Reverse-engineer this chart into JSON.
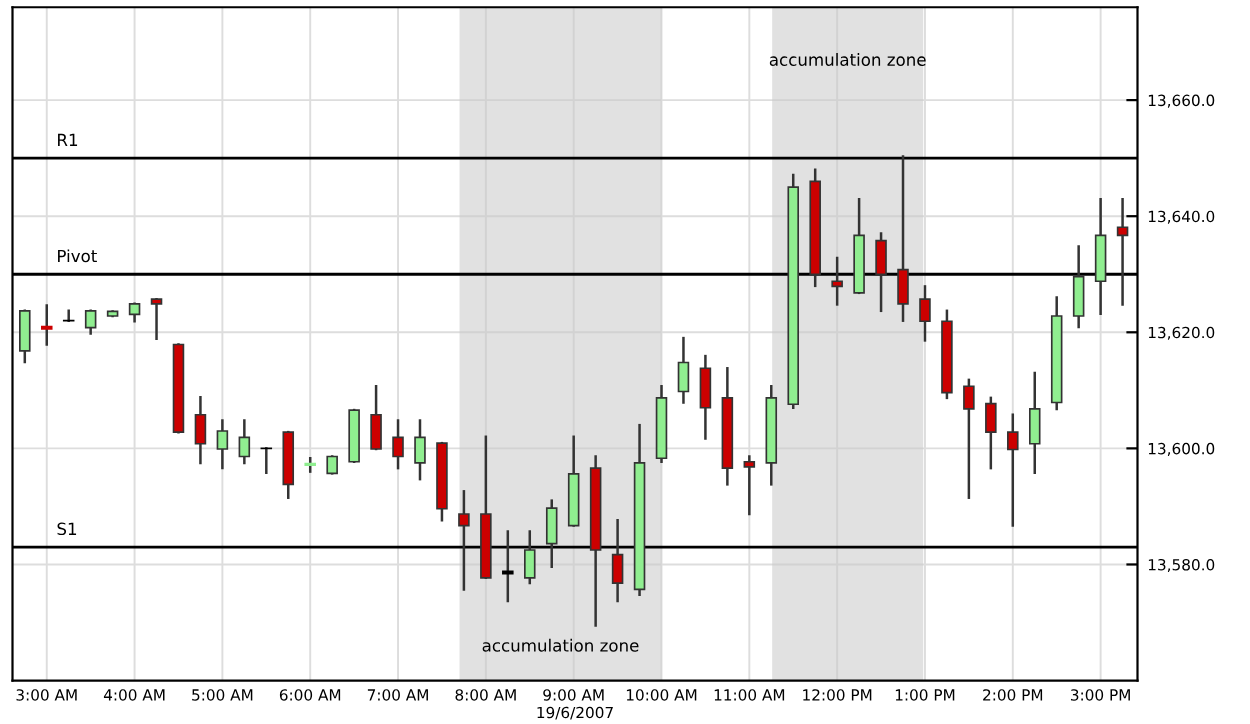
{
  "chart_data": {
    "type": "candlestick",
    "xlabel": "19/6/2007",
    "x": [
      2.75,
      3,
      3.25,
      3.5,
      3.75,
      4,
      4.25,
      4.5,
      4.75,
      5,
      5.25,
      5.5,
      5.75,
      6,
      6.25,
      6.5,
      6.75,
      7,
      7.25,
      7.5,
      7.75,
      8,
      8.25,
      8.5,
      8.75,
      9,
      9.25,
      9.5,
      9.75,
      10,
      10.25,
      10.5,
      10.75,
      11,
      11.25,
      11.5,
      11.75,
      12,
      12.25,
      12.5,
      12.75,
      13,
      13.25,
      13.5,
      13.75,
      14,
      14.25,
      14.5,
      14.75,
      15,
      15.25
    ],
    "ohlc": [
      [
        13616.8,
        13623.7,
        13614.9,
        13623.7
      ],
      [
        13621.0,
        13624.6,
        13617.9,
        13620.6
      ],
      [
        13622,
        13623.7,
        13622,
        13622
      ],
      [
        13620.8,
        13623.7,
        13619.8,
        13623.7
      ],
      [
        13622.8,
        13623.6,
        13622.8,
        13623.6
      ],
      [
        13623.1,
        13624.9,
        13621.9,
        13624.9
      ],
      [
        13625.7,
        13625.7,
        13618.9,
        13624.9
      ],
      [
        13617.9,
        13617.9,
        13602.8,
        13602.8
      ],
      [
        13605.8,
        13608.8,
        13597.5,
        13600.8
      ],
      [
        13599.9,
        13604.8,
        13596.6,
        13603.0
      ],
      [
        13598.6,
        13604.8,
        13597.5,
        13601.9
      ],
      [
        13600,
        13600,
        13595.8,
        13600
      ],
      [
        13602.8,
        13602.8,
        13591.5,
        13593.8
      ],
      [
        13597.1,
        13598.3,
        13596,
        13597.4
      ],
      [
        13595.7,
        13598.6,
        13595.7,
        13598.6
      ],
      [
        13597.7,
        13606.6,
        13597.7,
        13606.6
      ],
      [
        13605.8,
        13610.7,
        13599.9,
        13599.9
      ],
      [
        13601.9,
        13604.8,
        13596.6,
        13598.6
      ],
      [
        13597.5,
        13604.8,
        13594.7,
        13601.9
      ],
      [
        13600.9,
        13600.9,
        13587.6,
        13589.6
      ],
      [
        13588.7,
        13592.6,
        13575.7,
        13586.7
      ],
      [
        13588.7,
        13602,
        13577.7,
        13577.7
      ],
      [
        13578.8,
        13585.7,
        13573.7,
        13578.4
      ],
      [
        13577.7,
        13585.7,
        13576.8,
        13582.5
      ],
      [
        13583.6,
        13591,
        13579.6,
        13589.7
      ],
      [
        13586.7,
        13602,
        13586.7,
        13595.6
      ],
      [
        13596.6,
        13598.6,
        13569.5,
        13582.5
      ],
      [
        13581.7,
        13587.6,
        13573.7,
        13576.8
      ],
      [
        13575.7,
        13604,
        13574.8,
        13597.5
      ],
      [
        13598.3,
        13610.7,
        13597.7,
        13608.7
      ],
      [
        13609.8,
        13619,
        13607.9,
        13614.8
      ],
      [
        13613.8,
        13615.9,
        13601.7,
        13607
      ],
      [
        13608.7,
        13613.8,
        13593.8,
        13596.6
      ],
      [
        13597.7,
        13598.6,
        13588.7,
        13596.8
      ],
      [
        13597.5,
        13610.7,
        13593.8,
        13608.7
      ],
      [
        13607.6,
        13647.1,
        13607,
        13645
      ],
      [
        13646,
        13648,
        13628,
        13630
      ],
      [
        13628.8,
        13632.8,
        13624.8,
        13627.9
      ],
      [
        13626.8,
        13642.9,
        13626.8,
        13636.7
      ],
      [
        13635.8,
        13637,
        13623.7,
        13630
      ],
      [
        13630.8,
        13650.3,
        13622,
        13624.9
      ],
      [
        13625.7,
        13627.9,
        13618.6,
        13621.9
      ],
      [
        13621.9,
        13623.7,
        13608.7,
        13609.6
      ],
      [
        13610.7,
        13611.8,
        13591.5,
        13606.8
      ],
      [
        13607.7,
        13608.7,
        13596.6,
        13602.8
      ],
      [
        13602.8,
        13605.8,
        13586.7,
        13599.8
      ],
      [
        13600.8,
        13613,
        13595.8,
        13606.8
      ],
      [
        13607.9,
        13626,
        13606.8,
        13622.8
      ],
      [
        13622.8,
        13634.8,
        13620.9,
        13629.6
      ],
      [
        13628.8,
        13642.9,
        13623.2,
        13636.7
      ],
      [
        13638.1,
        13642.9,
        13624.8,
        13636.7
      ]
    ],
    "colors": [
      "#90ee90",
      "#cc0000",
      "#000000",
      "#90ee90",
      "#90ee90",
      "#90ee90",
      "#cc0000",
      "#cc0000",
      "#cc0000",
      "#90ee90",
      "#90ee90",
      "#000000",
      "#cc0000",
      "#90ee90",
      "#90ee90",
      "#90ee90",
      "#cc0000",
      "#cc0000",
      "#90ee90",
      "#cc0000",
      "#cc0000",
      "#cc0000",
      "#000000",
      "#90ee90",
      "#90ee90",
      "#90ee90",
      "#cc0000",
      "#cc0000",
      "#90ee90",
      "#90ee90",
      "#90ee90",
      "#cc0000",
      "#cc0000",
      "#cc0000",
      "#90ee90",
      "#90ee90",
      "#cc0000",
      "#cc0000",
      "#90ee90",
      "#cc0000",
      "#cc0000",
      "#cc0000",
      "#cc0000",
      "#cc0000",
      "#cc0000",
      "#cc0000",
      "#90ee90",
      "#90ee90",
      "#90ee90",
      "#90ee90",
      "#cc0000"
    ],
    "xlim": [
      2.61,
      15.42
    ],
    "xticks": [
      {
        "value": 3,
        "label": "3:00 AM"
      },
      {
        "value": 4,
        "label": "4:00 AM"
      },
      {
        "value": 5,
        "label": "5:00 AM"
      },
      {
        "value": 6,
        "label": "6:00 AM"
      },
      {
        "value": 7,
        "label": "7:00 AM"
      },
      {
        "value": 8,
        "label": "8:00 AM"
      },
      {
        "value": 9,
        "label": "9:00 AM"
      },
      {
        "value": 10,
        "label": "10:00 AM"
      },
      {
        "value": 11,
        "label": "11:00 AM"
      },
      {
        "value": 12,
        "label": "12:00 PM"
      },
      {
        "value": 13,
        "label": "1:00 PM"
      },
      {
        "value": 14,
        "label": "2:00 PM"
      },
      {
        "value": 15,
        "label": "3:00 PM"
      }
    ],
    "ylim": [
      13560,
      13676
    ],
    "yticks": [
      {
        "value": 13580,
        "label": "13,580.0"
      },
      {
        "value": 13600,
        "label": "13,600.0"
      },
      {
        "value": 13620,
        "label": "13,620.0"
      },
      {
        "value": 13640,
        "label": "13,640.0"
      },
      {
        "value": 13660,
        "label": "13,660.0"
      }
    ],
    "ref_lines": [
      {
        "axis": "y",
        "value": 13650,
        "label": "R1",
        "color": "#000000"
      },
      {
        "axis": "y",
        "value": 13630,
        "label": "Pivot",
        "color": "#000000"
      },
      {
        "axis": "y",
        "value": 13583,
        "label": "S1",
        "color": "#000000"
      }
    ],
    "bands": [
      {
        "axis": "x",
        "from": 7.7,
        "to": 10.0,
        "color": "#c8c8c8",
        "label": "accumulation zone"
      },
      {
        "axis": "x",
        "from": 11.26,
        "to": 12.98,
        "color": "#c8c8c8",
        "label": "accumulation zone"
      }
    ],
    "grid": true,
    "legend": false
  }
}
